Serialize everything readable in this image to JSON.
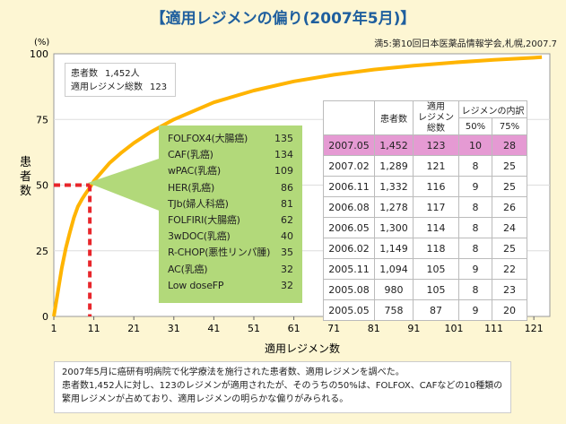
{
  "title": "【適用レジメンの偏り(2007年5月)】",
  "source": "満5:第10回日本医薬品情報学会,札幌,2007.7",
  "summary": {
    "patients_label": "患者数",
    "patients_value": "1,452人",
    "regimens_label": "適用レジメン総数",
    "regimens_value": "123"
  },
  "regimen_list": [
    {
      "name": "FOLFOX4(大腸癌)",
      "value": "135"
    },
    {
      "name": "CAF(乳癌)",
      "value": "134"
    },
    {
      "name": "wPAC(乳癌)",
      "value": "109"
    },
    {
      "name": "HER(乳癌)",
      "value": "86"
    },
    {
      "name": "TJb(婦人科癌)",
      "value": "81"
    },
    {
      "name": "FOLFIRI(大腸癌)",
      "value": "62"
    },
    {
      "name": "3wDOC(乳癌)",
      "value": "40"
    },
    {
      "name": "R-CHOP(悪性リンパ腫)",
      "value": "35"
    },
    {
      "name": "AC(乳癌)",
      "value": "32"
    },
    {
      "name": "Low doseFP",
      "value": "32"
    }
  ],
  "table": {
    "headers": {
      "patients": "患者数",
      "regimens": "適用\nレジメン\n総数",
      "breakdown": "レジメンの内訳",
      "p50": "50%",
      "p75": "75%"
    },
    "rows": [
      {
        "date": "2007.05",
        "patients": "1,452",
        "regimens": "123",
        "p50": "10",
        "p75": "28",
        "highlight": true
      },
      {
        "date": "2007.02",
        "patients": "1,289",
        "regimens": "121",
        "p50": "8",
        "p75": "25"
      },
      {
        "date": "2006.11",
        "patients": "1,332",
        "regimens": "116",
        "p50": "9",
        "p75": "25"
      },
      {
        "date": "2006.08",
        "patients": "1,278",
        "regimens": "117",
        "p50": "8",
        "p75": "26"
      },
      {
        "date": "2006.05",
        "patients": "1,300",
        "regimens": "114",
        "p50": "8",
        "p75": "24"
      },
      {
        "date": "2006.02",
        "patients": "1,149",
        "regimens": "118",
        "p50": "8",
        "p75": "25"
      },
      {
        "date": "2005.11",
        "patients": "1,094",
        "regimens": "105",
        "p50": "9",
        "p75": "22"
      },
      {
        "date": "2005.08",
        "patients": "980",
        "regimens": "105",
        "p50": "8",
        "p75": "23"
      },
      {
        "date": "2005.05",
        "patients": "758",
        "regimens": "87",
        "p50": "9",
        "p75": "20"
      }
    ]
  },
  "footnote": [
    "2007年5月に癌研有明病院で化学療法を施行された患者数、適用レジメンを調べた。",
    "患者数1,452人に対し、123のレジメンが適用されたが、そのうちの50%は、FOLFOX、CAFなどの10種類の",
    "繁用レジメンが占めており、適用レジメンの明らかな偏りがみられる。"
  ],
  "chart_data": {
    "type": "line",
    "xlabel": "適用レジメン数",
    "ylabel": "患者数",
    "yunit": "(%)",
    "xlim": [
      1,
      125
    ],
    "ylim": [
      0,
      100
    ],
    "xticks": [
      1,
      11,
      21,
      31,
      41,
      51,
      61,
      71,
      81,
      91,
      101,
      111,
      121
    ],
    "yticks": [
      0,
      25,
      50,
      75,
      100
    ],
    "x": [
      1,
      2,
      3,
      4,
      5,
      6,
      7,
      8,
      9,
      10,
      11,
      13,
      15,
      18,
      21,
      25,
      31,
      41,
      51,
      61,
      71,
      81,
      91,
      101,
      111,
      121,
      123
    ],
    "y": [
      0,
      9.3,
      18.5,
      26,
      31.9,
      37.5,
      41.8,
      44.5,
      46.9,
      49,
      51.5,
      55,
      58.5,
      62.5,
      66,
      70,
      75,
      81.5,
      86,
      89.5,
      92,
      94,
      95.5,
      96.7,
      97.7,
      98.5,
      98.7
    ],
    "reference_point": {
      "x": 10,
      "y": 50
    },
    "line_color": "#ffb400",
    "reference_color": "#e8262b"
  }
}
